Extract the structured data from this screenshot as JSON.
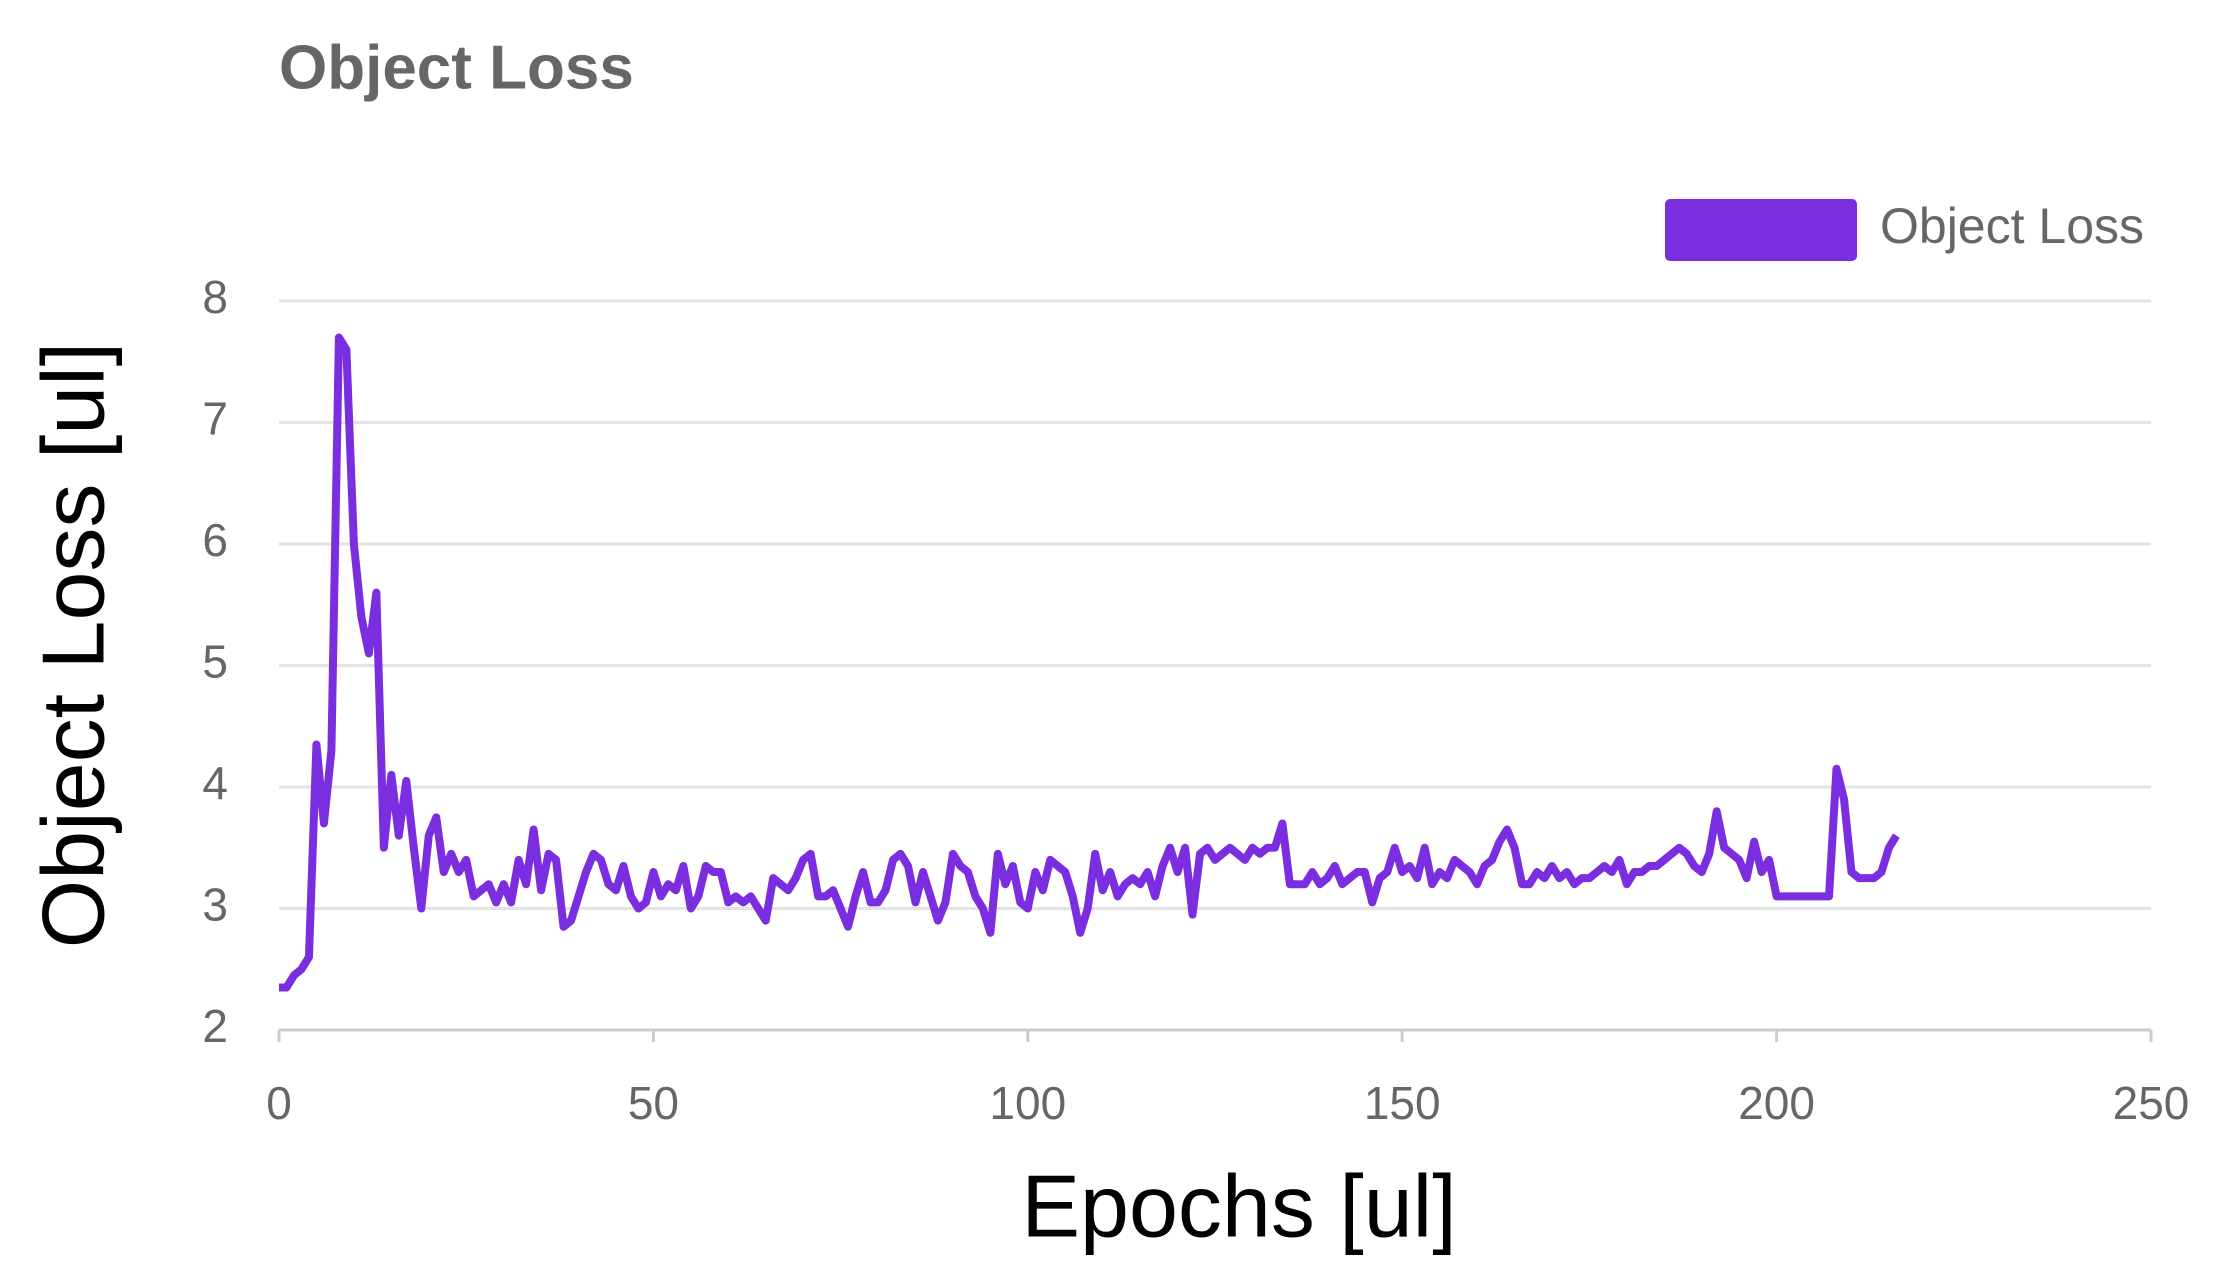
{
  "chart_data": {
    "type": "line",
    "title": "Object Loss",
    "x_label": "Epochs [ul]",
    "y_label": "Object Loss [ul]",
    "xlim": [
      0,
      250
    ],
    "xticks": [
      0,
      50,
      100,
      150,
      200,
      250
    ],
    "ylim": [
      2,
      8
    ],
    "yticks": [
      2,
      3,
      4,
      5,
      6,
      7,
      8
    ],
    "grid": true,
    "legend": "top-right",
    "x": [
      0,
      1,
      2,
      3,
      4,
      5,
      6,
      7,
      8,
      9,
      10,
      11,
      12,
      13,
      14,
      15,
      16,
      17,
      18,
      19,
      20,
      21,
      22,
      23,
      24,
      25,
      26,
      27,
      28,
      29,
      30,
      31,
      32,
      33,
      34,
      35,
      36,
      37,
      38,
      39,
      40,
      41,
      42,
      43,
      44,
      45,
      46,
      47,
      48,
      49,
      50,
      51,
      52,
      53,
      54,
      55,
      56,
      57,
      58,
      59,
      60,
      61,
      62,
      63,
      64,
      65,
      66,
      67,
      68,
      69,
      70,
      71,
      72,
      73,
      74,
      75,
      76,
      77,
      78,
      79,
      80,
      81,
      82,
      83,
      84,
      85,
      86,
      87,
      88,
      89,
      90,
      91,
      92,
      93,
      94,
      95,
      96,
      97,
      98,
      99,
      100,
      101,
      102,
      103,
      104,
      105,
      106,
      107,
      108,
      109,
      110,
      111,
      112,
      113,
      114,
      115,
      116,
      117,
      118,
      119,
      120,
      121,
      122,
      123,
      124,
      125,
      126,
      127,
      128,
      129,
      130,
      131,
      132,
      133,
      134,
      135,
      136,
      137,
      138,
      139,
      140,
      141,
      142,
      143,
      144,
      145,
      146,
      147,
      148,
      149,
      150,
      151,
      152,
      153,
      154,
      155,
      156,
      157,
      158,
      159,
      160,
      161,
      162,
      163,
      164,
      165,
      166,
      167,
      168,
      169,
      170,
      171,
      172,
      173,
      174,
      175,
      176,
      177,
      178,
      179,
      180,
      181,
      182,
      183,
      184,
      185,
      186,
      187,
      188,
      189,
      190,
      191,
      192,
      193,
      194,
      195,
      196,
      197,
      198,
      199,
      200,
      201,
      202,
      203,
      204,
      205,
      206,
      207,
      208,
      209,
      210,
      211,
      212,
      213,
      214,
      215,
      216
    ],
    "series": [
      {
        "name": "Object Loss",
        "color": "#7b2ee0",
        "values": [
          2.35,
          2.35,
          2.45,
          2.5,
          2.6,
          4.35,
          3.7,
          4.3,
          7.7,
          7.6,
          6.0,
          5.4,
          5.1,
          5.6,
          3.5,
          4.1,
          3.6,
          4.05,
          3.5,
          3.0,
          3.6,
          3.75,
          3.3,
          3.45,
          3.3,
          3.4,
          3.1,
          3.15,
          3.2,
          3.05,
          3.2,
          3.05,
          3.4,
          3.2,
          3.65,
          3.15,
          3.45,
          3.4,
          2.85,
          2.9,
          3.1,
          3.3,
          3.45,
          3.4,
          3.2,
          3.15,
          3.35,
          3.1,
          3.0,
          3.05,
          3.3,
          3.1,
          3.2,
          3.15,
          3.35,
          3.0,
          3.1,
          3.35,
          3.3,
          3.3,
          3.05,
          3.1,
          3.05,
          3.1,
          3.0,
          2.9,
          3.25,
          3.2,
          3.15,
          3.25,
          3.4,
          3.45,
          3.1,
          3.1,
          3.15,
          3.0,
          2.85,
          3.1,
          3.3,
          3.05,
          3.05,
          3.15,
          3.4,
          3.45,
          3.35,
          3.05,
          3.3,
          3.1,
          2.9,
          3.05,
          3.45,
          3.35,
          3.3,
          3.1,
          3.0,
          2.8,
          3.45,
          3.2,
          3.35,
          3.05,
          3.0,
          3.3,
          3.15,
          3.4,
          3.35,
          3.3,
          3.1,
          2.8,
          3.0,
          3.45,
          3.15,
          3.3,
          3.1,
          3.2,
          3.25,
          3.2,
          3.3,
          3.1,
          3.35,
          3.5,
          3.3,
          3.5,
          2.95,
          3.45,
          3.5,
          3.4,
          3.45,
          3.5,
          3.45,
          3.4,
          3.5,
          3.45,
          3.5,
          3.5,
          3.7,
          3.2,
          3.2,
          3.2,
          3.3,
          3.2,
          3.25,
          3.35,
          3.2,
          3.25,
          3.3,
          3.3,
          3.05,
          3.25,
          3.3,
          3.5,
          3.3,
          3.35,
          3.25,
          3.5,
          3.2,
          3.3,
          3.25,
          3.4,
          3.35,
          3.3,
          3.2,
          3.35,
          3.4,
          3.55,
          3.65,
          3.5,
          3.2,
          3.2,
          3.3,
          3.25,
          3.35,
          3.25,
          3.3,
          3.2,
          3.25,
          3.25,
          3.3,
          3.35,
          3.3,
          3.4,
          3.2,
          3.3,
          3.3,
          3.35,
          3.35,
          3.4,
          3.45,
          3.5,
          3.45,
          3.35,
          3.3,
          3.45,
          3.8,
          3.5,
          3.45,
          3.4,
          3.25,
          3.55,
          3.3,
          3.4,
          3.1,
          3.1,
          3.1,
          3.1,
          3.1,
          3.1,
          3.1,
          3.1,
          4.15,
          3.9,
          3.3,
          3.25,
          3.25,
          3.25,
          3.3,
          3.5,
          3.6
        ]
      }
    ]
  }
}
